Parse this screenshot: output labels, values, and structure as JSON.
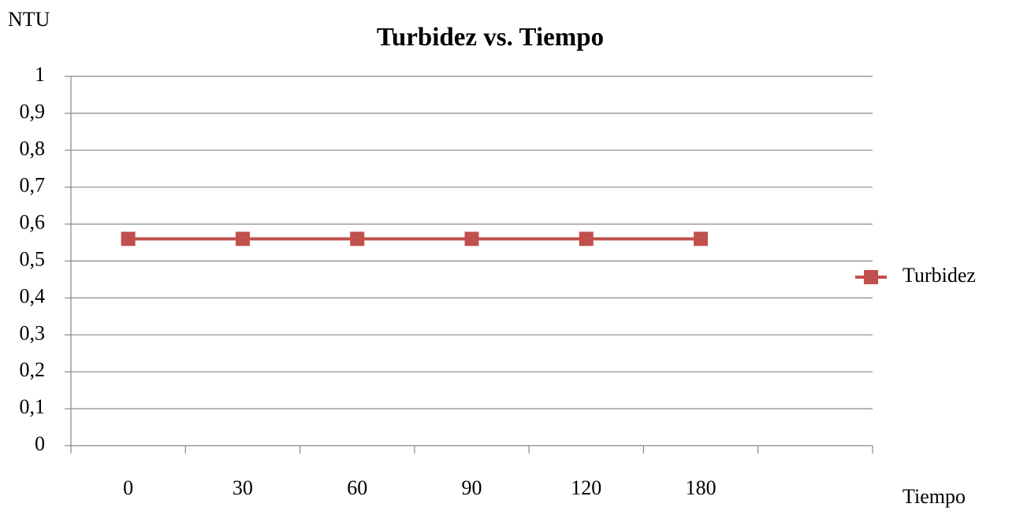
{
  "chart_data": {
    "type": "line",
    "title": "Turbidez vs. Tiempo",
    "y_label": "NTU",
    "x_label": "Tiempo",
    "categories": [
      "0",
      "30",
      "60",
      "90",
      "120",
      "180",
      null
    ],
    "series": [
      {
        "name": "Turbidez",
        "color": "#c0504d",
        "values": [
          0.56,
          0.56,
          0.56,
          0.56,
          0.56,
          0.56,
          null
        ]
      }
    ],
    "ylim": [
      0,
      1
    ],
    "yticks": [
      0,
      {
        "value": 0.1,
        "label": "0,1"
      },
      {
        "value": 0.2,
        "label": "0,2"
      },
      {
        "value": 0.3,
        "label": "0,3"
      },
      {
        "value": 0.4,
        "label": "0,4"
      },
      {
        "value": 0.5,
        "label": "0,5"
      },
      {
        "value": 0.6,
        "label": "0,6"
      },
      {
        "value": 0.7,
        "label": "0,7"
      },
      {
        "value": 0.8,
        "label": "0,8"
      },
      {
        "value": 0.9,
        "label": "0,9"
      },
      1
    ],
    "grid": true,
    "legend": "right"
  }
}
